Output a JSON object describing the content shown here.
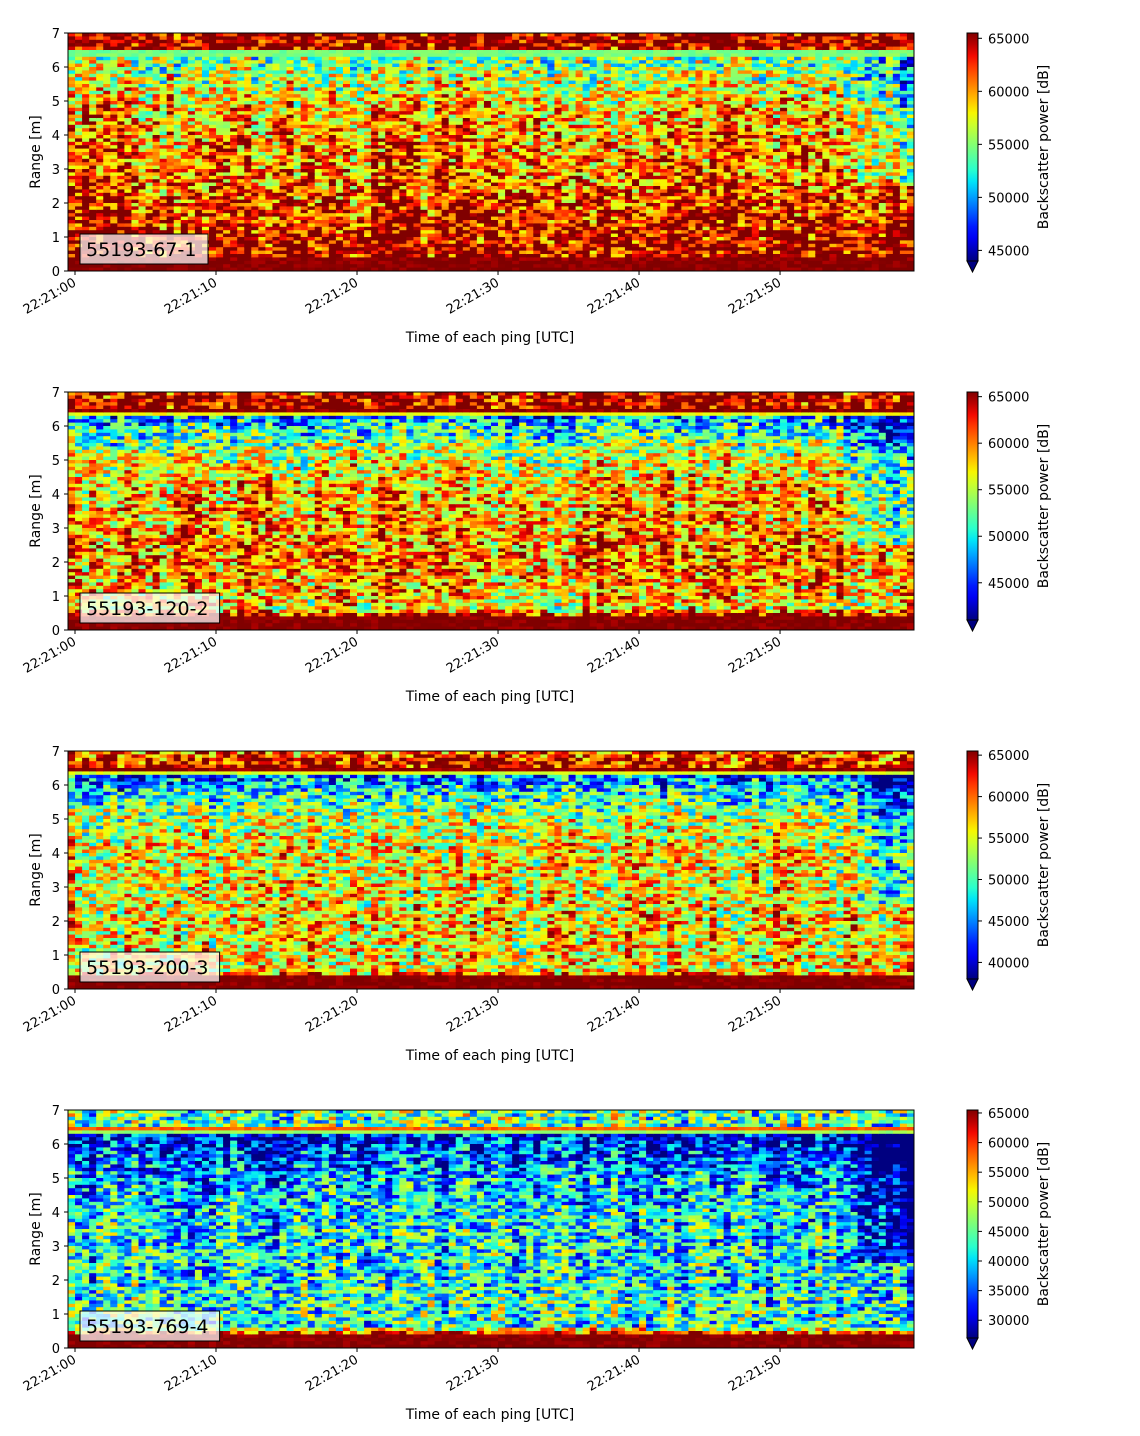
{
  "chart_data": [
    {
      "type": "heatmap",
      "label": "55193-67-1",
      "xlabel": "Time of each ping [UTC]",
      "ylabel": "Range [m]",
      "x_ticks": [
        "22:21:00",
        "22:21:10",
        "22:21:20",
        "22:21:30",
        "22:21:40",
        "22:21:50"
      ],
      "x_range_seconds": [
        0,
        59.5
      ],
      "y_ticks": [
        0,
        1,
        2,
        3,
        4,
        5,
        6,
        7
      ],
      "ylim": [
        0,
        7
      ],
      "colorbar": {
        "label": "Backscatter power [dB]",
        "min": 44000,
        "max": 65500,
        "ticks": [
          45000,
          50000,
          55000,
          60000,
          65000
        ],
        "extend": "min"
      },
      "profile": [
        {
          "r": 0.0,
          "v": 65500
        },
        {
          "r": 0.2,
          "v": 65500
        },
        {
          "r": 0.5,
          "v": 65000
        },
        {
          "r": 1.0,
          "v": 64500
        },
        {
          "r": 1.5,
          "v": 63500
        },
        {
          "r": 2.0,
          "v": 62500
        },
        {
          "r": 3.0,
          "v": 61000
        },
        {
          "r": 4.0,
          "v": 60500
        },
        {
          "r": 5.0,
          "v": 58500
        },
        {
          "r": 6.0,
          "v": 55500
        },
        {
          "r": 6.45,
          "v": 54500
        },
        {
          "r": 6.5,
          "v": 65500
        },
        {
          "r": 7.0,
          "v": 65500
        }
      ]
    },
    {
      "type": "heatmap",
      "label": "55193-120-2",
      "xlabel": "Time of each ping [UTC]",
      "ylabel": "Range [m]",
      "x_ticks": [
        "22:21:00",
        "22:21:10",
        "22:21:20",
        "22:21:30",
        "22:21:40",
        "22:21:50"
      ],
      "x_range_seconds": [
        0,
        59.5
      ],
      "y_ticks": [
        0,
        1,
        2,
        3,
        4,
        5,
        6,
        7
      ],
      "ylim": [
        0,
        7
      ],
      "colorbar": {
        "label": "Backscatter power [dB]",
        "min": 41000,
        "max": 65500,
        "ticks": [
          45000,
          50000,
          55000,
          60000,
          65000
        ],
        "extend": "min"
      },
      "profile": [
        {
          "r": 0.0,
          "v": 65500
        },
        {
          "r": 0.4,
          "v": 65500
        },
        {
          "r": 0.6,
          "v": 57000
        },
        {
          "r": 1.0,
          "v": 58000
        },
        {
          "r": 2.0,
          "v": 60000
        },
        {
          "r": 3.0,
          "v": 59000
        },
        {
          "r": 4.0,
          "v": 58500
        },
        {
          "r": 5.0,
          "v": 56000
        },
        {
          "r": 6.0,
          "v": 50000
        },
        {
          "r": 6.3,
          "v": 48000
        },
        {
          "r": 6.4,
          "v": 65500
        },
        {
          "r": 7.0,
          "v": 64000
        }
      ]
    },
    {
      "type": "heatmap",
      "label": "55193-200-3",
      "xlabel": "Time of each ping [UTC]",
      "ylabel": "Range [m]",
      "x_ticks": [
        "22:21:00",
        "22:21:10",
        "22:21:20",
        "22:21:30",
        "22:21:40",
        "22:21:50"
      ],
      "x_range_seconds": [
        0,
        59.5
      ],
      "y_ticks": [
        0,
        1,
        2,
        3,
        4,
        5,
        6,
        7
      ],
      "ylim": [
        0,
        7
      ],
      "colorbar": {
        "label": "Backscatter power [dB]",
        "min": 38000,
        "max": 65500,
        "ticks": [
          40000,
          45000,
          50000,
          55000,
          60000,
          65000
        ],
        "extend": "min"
      },
      "profile": [
        {
          "r": 0.0,
          "v": 65500
        },
        {
          "r": 0.35,
          "v": 65500
        },
        {
          "r": 0.5,
          "v": 56000
        },
        {
          "r": 1.0,
          "v": 56000
        },
        {
          "r": 2.0,
          "v": 56500
        },
        {
          "r": 3.0,
          "v": 56000
        },
        {
          "r": 4.0,
          "v": 56000
        },
        {
          "r": 5.0,
          "v": 54000
        },
        {
          "r": 6.0,
          "v": 47000
        },
        {
          "r": 6.3,
          "v": 44000
        },
        {
          "r": 6.4,
          "v": 65500
        },
        {
          "r": 7.0,
          "v": 60000
        }
      ]
    },
    {
      "type": "heatmap",
      "label": "55193-769-4",
      "xlabel": "Time of each ping [UTC]",
      "ylabel": "Range [m]",
      "x_ticks": [
        "22:21:00",
        "22:21:10",
        "22:21:20",
        "22:21:30",
        "22:21:40",
        "22:21:50"
      ],
      "x_range_seconds": [
        0,
        59.5
      ],
      "y_ticks": [
        0,
        1,
        2,
        3,
        4,
        5,
        6,
        7
      ],
      "ylim": [
        0,
        7
      ],
      "colorbar": {
        "label": "Backscatter power [dB]",
        "min": 27000,
        "max": 65500,
        "ticks": [
          30000,
          35000,
          40000,
          45000,
          50000,
          55000,
          60000,
          65000
        ],
        "extend": "min"
      },
      "profile": [
        {
          "r": 0.0,
          "v": 65500
        },
        {
          "r": 0.4,
          "v": 65500
        },
        {
          "r": 0.6,
          "v": 43000
        },
        {
          "r": 1.0,
          "v": 43000
        },
        {
          "r": 2.0,
          "v": 41500
        },
        {
          "r": 3.0,
          "v": 41000
        },
        {
          "r": 4.0,
          "v": 40500
        },
        {
          "r": 5.0,
          "v": 38000
        },
        {
          "r": 6.0,
          "v": 32000
        },
        {
          "r": 6.3,
          "v": 30000
        },
        {
          "r": 6.4,
          "v": 65500
        },
        {
          "r": 6.55,
          "v": 44000
        },
        {
          "r": 7.0,
          "v": 45000
        }
      ]
    }
  ]
}
